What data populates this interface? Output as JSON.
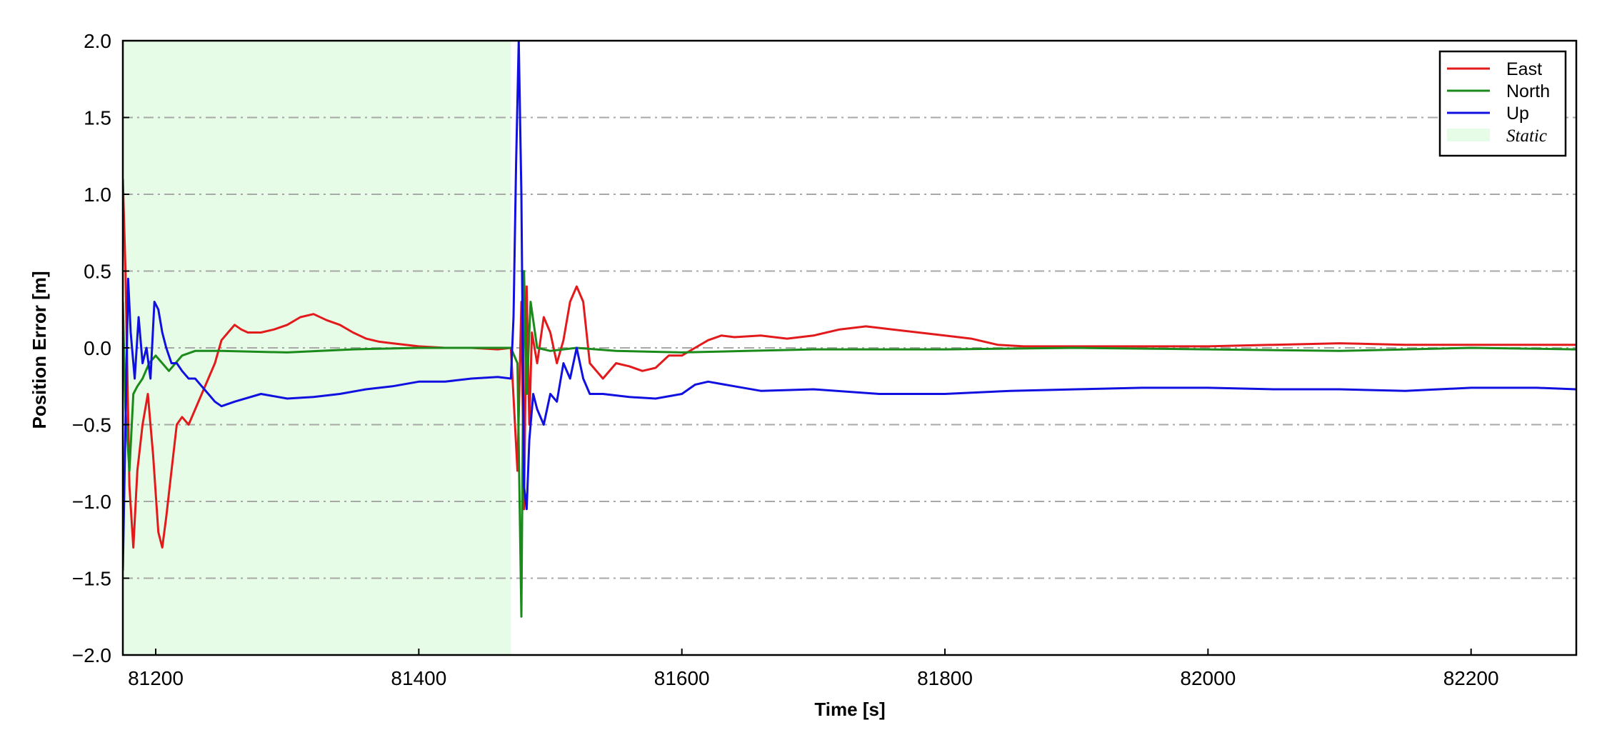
{
  "chart_data": {
    "type": "line",
    "title": "",
    "xlabel": "Time [s]",
    "ylabel": "Position Error [m]",
    "xlim": [
      81175,
      82280
    ],
    "ylim": [
      -2.0,
      2.0
    ],
    "xticks": [
      81200,
      81400,
      81600,
      81800,
      82000,
      82200
    ],
    "xtick_labels": [
      "81200",
      "81400",
      "81600",
      "81800",
      "82000",
      "82200"
    ],
    "yticks": [
      -2.0,
      -1.5,
      -1.0,
      -0.5,
      0.0,
      0.5,
      1.0,
      1.5,
      2.0
    ],
    "ytick_labels": [
      "−2.0",
      "−1.5",
      "−1.0",
      "−0.5",
      "0.0",
      "0.5",
      "1.0",
      "1.5",
      "2.0"
    ],
    "grid": "horizontal dash-dot",
    "legend_position": "top-right",
    "shaded_regions": [
      {
        "name": "Static",
        "x": [
          81175,
          81470
        ],
        "color": "#e6fce6"
      }
    ],
    "series": [
      {
        "name": "East",
        "color": "#e31a1c",
        "x": [
          81175,
          81177,
          81180,
          81183,
          81186,
          81190,
          81194,
          81198,
          81202,
          81205,
          81208,
          81212,
          81216,
          81220,
          81225,
          81230,
          81235,
          81240,
          81245,
          81250,
          81255,
          81260,
          81265,
          81270,
          81280,
          81290,
          81300,
          81310,
          81320,
          81330,
          81340,
          81350,
          81360,
          81370,
          81380,
          81390,
          81400,
          81420,
          81440,
          81460,
          81470,
          81475,
          81478,
          81480,
          81482,
          81484,
          81486,
          81490,
          81495,
          81500,
          81505,
          81510,
          81515,
          81520,
          81525,
          81530,
          81540,
          81550,
          81560,
          81570,
          81580,
          81590,
          81600,
          81610,
          81620,
          81630,
          81640,
          81660,
          81680,
          81700,
          81720,
          81740,
          81760,
          81780,
          81800,
          81820,
          81840,
          81860,
          81900,
          81950,
          82000,
          82050,
          82100,
          82150,
          82200,
          82250,
          82280
        ],
        "y": [
          1.1,
          0.5,
          -0.9,
          -1.3,
          -0.8,
          -0.5,
          -0.3,
          -0.7,
          -1.2,
          -1.3,
          -1.1,
          -0.8,
          -0.5,
          -0.45,
          -0.5,
          -0.4,
          -0.3,
          -0.2,
          -0.1,
          0.05,
          0.1,
          0.15,
          0.12,
          0.1,
          0.1,
          0.12,
          0.15,
          0.2,
          0.22,
          0.18,
          0.15,
          0.1,
          0.06,
          0.04,
          0.03,
          0.02,
          0.01,
          0.0,
          0.0,
          -0.01,
          0.0,
          -0.8,
          0.3,
          -1.05,
          0.4,
          -0.5,
          0.1,
          -0.1,
          0.2,
          0.1,
          -0.1,
          0.05,
          0.3,
          0.4,
          0.3,
          -0.1,
          -0.2,
          -0.1,
          -0.12,
          -0.15,
          -0.13,
          -0.05,
          -0.05,
          0.0,
          0.05,
          0.08,
          0.07,
          0.08,
          0.06,
          0.08,
          0.12,
          0.14,
          0.12,
          0.1,
          0.08,
          0.06,
          0.02,
          0.01,
          0.01,
          0.01,
          0.01,
          0.02,
          0.03,
          0.02,
          0.02,
          0.02,
          0.02
        ]
      },
      {
        "name": "North",
        "color": "#1a8a1a",
        "x": [
          81175,
          81177,
          81180,
          81183,
          81186,
          81190,
          81195,
          81200,
          81205,
          81210,
          81215,
          81220,
          81230,
          81250,
          81300,
          81350,
          81400,
          81450,
          81470,
          81475,
          81478,
          81480,
          81482,
          81485,
          81490,
          81500,
          81520,
          81550,
          81600,
          81650,
          81700,
          81800,
          81900,
          82000,
          82100,
          82200,
          82280
        ],
        "y": [
          0.3,
          -0.4,
          -0.8,
          -0.3,
          -0.25,
          -0.2,
          -0.1,
          -0.05,
          -0.1,
          -0.15,
          -0.1,
          -0.05,
          -0.02,
          -0.02,
          -0.03,
          -0.01,
          0.0,
          0.0,
          0.0,
          -0.1,
          -1.75,
          0.5,
          -0.3,
          0.3,
          0.0,
          -0.02,
          0.0,
          -0.02,
          -0.03,
          -0.02,
          -0.01,
          -0.01,
          0.0,
          -0.01,
          -0.02,
          0.0,
          -0.01
        ]
      },
      {
        "name": "Up",
        "color": "#1010e0",
        "x": [
          81175,
          81177,
          81179,
          81181,
          81184,
          81187,
          81190,
          81193,
          81196,
          81199,
          81202,
          81205,
          81208,
          81212,
          81216,
          81220,
          81225,
          81230,
          81235,
          81240,
          81245,
          81250,
          81260,
          81280,
          81300,
          81320,
          81340,
          81360,
          81380,
          81400,
          81420,
          81440,
          81460,
          81470,
          81472,
          81474,
          81476,
          81478,
          81480,
          81482,
          81484,
          81487,
          81490,
          81495,
          81500,
          81505,
          81510,
          81515,
          81520,
          81525,
          81530,
          81540,
          81560,
          81580,
          81600,
          81610,
          81620,
          81640,
          81660,
          81700,
          81750,
          81800,
          81850,
          81900,
          81950,
          82000,
          82050,
          82100,
          82150,
          82200,
          82250,
          82280
        ],
        "y": [
          -1.45,
          -0.5,
          0.45,
          0.1,
          -0.2,
          0.2,
          -0.1,
          0.0,
          -0.2,
          0.3,
          0.25,
          0.1,
          0.0,
          -0.1,
          -0.1,
          -0.15,
          -0.2,
          -0.2,
          -0.25,
          -0.3,
          -0.35,
          -0.38,
          -0.35,
          -0.3,
          -0.33,
          -0.32,
          -0.3,
          -0.27,
          -0.25,
          -0.22,
          -0.22,
          -0.2,
          -0.19,
          -0.2,
          0.2,
          1.2,
          2.0,
          1.0,
          -0.9,
          -1.05,
          -0.6,
          -0.3,
          -0.4,
          -0.5,
          -0.3,
          -0.35,
          -0.1,
          -0.2,
          0.0,
          -0.2,
          -0.3,
          -0.3,
          -0.32,
          -0.33,
          -0.3,
          -0.24,
          -0.22,
          -0.25,
          -0.28,
          -0.27,
          -0.3,
          -0.3,
          -0.28,
          -0.27,
          -0.26,
          -0.26,
          -0.27,
          -0.27,
          -0.28,
          -0.26,
          -0.26,
          -0.27
        ]
      }
    ]
  },
  "legend": {
    "items": [
      {
        "label": "East",
        "color": "#e31a1c",
        "kind": "line"
      },
      {
        "label": "North",
        "color": "#1a8a1a",
        "kind": "line"
      },
      {
        "label": "Up",
        "color": "#1010e0",
        "kind": "line"
      },
      {
        "label": "Static",
        "color": "#e6fce6",
        "kind": "patch"
      }
    ]
  }
}
